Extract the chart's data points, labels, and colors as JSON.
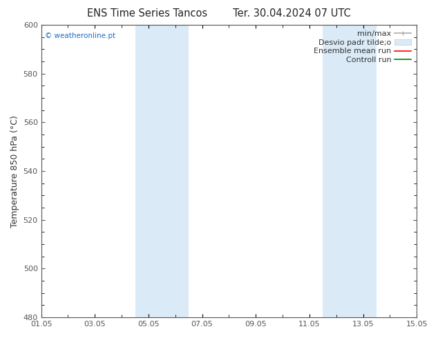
{
  "title_left": "ENS Time Series Tancos",
  "title_right": "Ter. 30.04.2024 07 UTC",
  "ylabel": "Temperature 850 hPa (°C)",
  "ylim": [
    480,
    600
  ],
  "yticks": [
    480,
    500,
    520,
    540,
    560,
    580,
    600
  ],
  "xlim": [
    0,
    14
  ],
  "xtick_labels": [
    "01.05",
    "03.05",
    "05.05",
    "07.05",
    "09.05",
    "11.05",
    "13.05",
    "15.05"
  ],
  "xtick_positions_days": [
    0,
    2,
    4,
    6,
    8,
    10,
    12,
    14
  ],
  "shaded_bands": [
    {
      "x_start_day": 3.5,
      "x_end_day": 5.5
    },
    {
      "x_start_day": 10.5,
      "x_end_day": 12.5
    }
  ],
  "shade_color": "#daeaf7",
  "bg_color": "#ffffff",
  "plot_bg_color": "#ffffff",
  "watermark_text": "© weatheronline.pt",
  "watermark_color": "#1a6ec7",
  "title_fontsize": 10.5,
  "axis_label_fontsize": 9,
  "tick_fontsize": 8,
  "legend_fontsize": 8,
  "spine_color": "#555555",
  "tick_color": "#555555"
}
